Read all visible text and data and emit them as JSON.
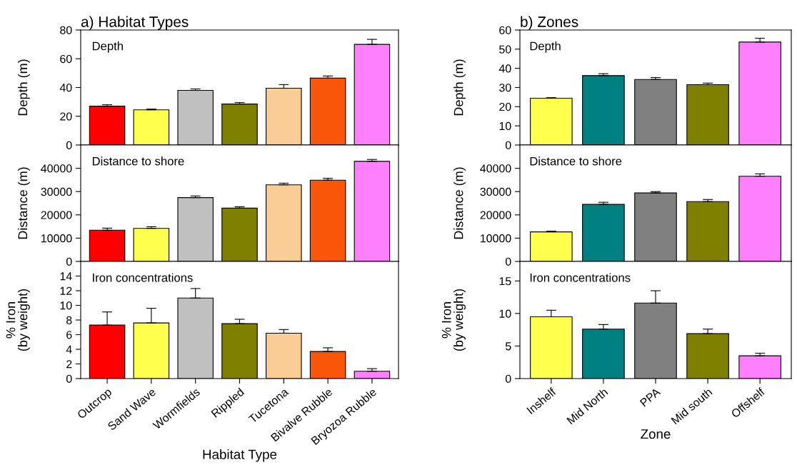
{
  "chart_data": [
    {
      "type": "bar",
      "title": "a) Habitat Types",
      "ylabel": "Depth (m)",
      "annotations": [
        "Depth"
      ],
      "categories": [
        null,
        null,
        null,
        null,
        null,
        null,
        null
      ],
      "colors": [
        "#ff0000",
        "#ffff4d",
        "#c0c0c0",
        "#808000",
        "#fbcd96",
        "#f9560a",
        "#ff80ff"
      ],
      "values": [
        27,
        24.5,
        38,
        28.5,
        39.5,
        46.5,
        70
      ],
      "errors": [
        [
          27,
          28
        ],
        [
          24.5,
          25
        ],
        [
          38,
          39
        ],
        [
          28.5,
          29.5
        ],
        [
          39.5,
          42
        ],
        [
          46.5,
          48
        ],
        [
          70,
          73.5
        ]
      ],
      "ylim": [
        0,
        80
      ],
      "yticks": [
        0,
        20,
        40,
        60,
        80
      ],
      "tick_labels": "y"
    },
    {
      "type": "bar",
      "ylabel": "Distance (m)",
      "annotations": [
        "Distance to shore"
      ],
      "categories": [
        null,
        null,
        null,
        null,
        null,
        null,
        null
      ],
      "colors": [
        "#ff0000",
        "#ffff4d",
        "#c0c0c0",
        "#808000",
        "#fbcd96",
        "#f9560a",
        "#ff80ff"
      ],
      "values": [
        13400,
        14200,
        27400,
        22900,
        32900,
        34900,
        43000
      ],
      "errors": [
        [
          13400,
          14300
        ],
        [
          14200,
          14900
        ],
        [
          27400,
          28100
        ],
        [
          22900,
          23500
        ],
        [
          32900,
          33600
        ],
        [
          34900,
          35700
        ],
        [
          43000,
          43800
        ]
      ],
      "ylim": [
        0,
        50000
      ],
      "yticks": [
        0,
        10000,
        20000,
        30000,
        40000
      ],
      "tick_labels": "y"
    },
    {
      "type": "bar",
      "ylabel": "% Iron\n(by weight)",
      "xlabel": "Habitat Type",
      "annotations": [
        "Iron concentrations"
      ],
      "categories": [
        "Outcrop",
        "Sand Wave",
        "Wormfields",
        "Rippled",
        "Tucetona",
        "Bivalve Rubble",
        "Bryozoa Rubble"
      ],
      "colors": [
        "#ff0000",
        "#ffff4d",
        "#c0c0c0",
        "#808000",
        "#fbcd96",
        "#f9560a",
        "#ff80ff"
      ],
      "values": [
        7.3,
        7.6,
        11.0,
        7.5,
        6.2,
        3.7,
        1.0
      ],
      "errors": [
        [
          7.3,
          9.1
        ],
        [
          7.6,
          9.6
        ],
        [
          11.0,
          12.3
        ],
        [
          7.5,
          8.1
        ],
        [
          6.2,
          6.7
        ],
        [
          3.7,
          4.2
        ],
        [
          1.0,
          1.35
        ]
      ],
      "ylim": [
        0,
        16
      ],
      "yticks": [
        0,
        2,
        4,
        6,
        8,
        10,
        12,
        14
      ]
    },
    {
      "type": "bar",
      "title": "b) Zones",
      "ylabel": "Depth (m)",
      "annotations": [
        "Depth"
      ],
      "categories": [
        null,
        null,
        null,
        null,
        null
      ],
      "colors": [
        "#ffff4d",
        "#008080",
        "#808080",
        "#808000",
        "#ff80ff"
      ],
      "values": [
        24.4,
        36.2,
        34.2,
        31.5,
        53.7
      ],
      "errors": [
        [
          24.4,
          24.7
        ],
        [
          36.2,
          37.2
        ],
        [
          34.2,
          35.2
        ],
        [
          31.5,
          32.3
        ],
        [
          53.7,
          55.7
        ]
      ],
      "ylim": [
        0,
        60
      ],
      "yticks": [
        0,
        10,
        20,
        30,
        40,
        50,
        60
      ],
      "tick_labels": "y"
    },
    {
      "type": "bar",
      "ylabel": "Distance (m)",
      "annotations": [
        "Distance to shore"
      ],
      "categories": [
        null,
        null,
        null,
        null,
        null
      ],
      "colors": [
        "#ffff4d",
        "#008080",
        "#808080",
        "#808000",
        "#ff80ff"
      ],
      "values": [
        12700,
        24500,
        29400,
        25700,
        36600
      ],
      "errors": [
        [
          12700,
          13000
        ],
        [
          24500,
          25400
        ],
        [
          29400,
          30000
        ],
        [
          25700,
          26600
        ],
        [
          36600,
          37600
        ]
      ],
      "ylim": [
        0,
        50000
      ],
      "yticks": [
        0,
        10000,
        20000,
        30000,
        40000
      ],
      "tick_labels": "y"
    },
    {
      "type": "bar",
      "ylabel": "% Iron\n(by weight)",
      "xlabel": "Zone",
      "annotations": [
        "Iron concentrations"
      ],
      "categories": [
        "Inshelf",
        "Mid North",
        "PPA",
        "Mid south",
        "Offshelf"
      ],
      "colors": [
        "#ffff4d",
        "#008080",
        "#808080",
        "#808000",
        "#ff80ff"
      ],
      "values": [
        9.5,
        7.6,
        11.6,
        6.9,
        3.5
      ],
      "errors": [
        [
          9.5,
          10.5
        ],
        [
          7.6,
          8.3
        ],
        [
          11.6,
          13.5
        ],
        [
          6.9,
          7.6
        ],
        [
          3.5,
          3.9
        ]
      ],
      "ylim": [
        0,
        18
      ],
      "yticks": [
        0,
        5,
        10,
        15
      ]
    }
  ]
}
